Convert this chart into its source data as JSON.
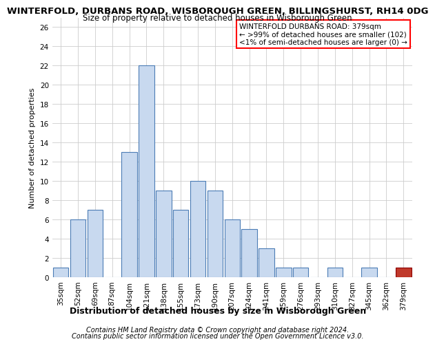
{
  "title": "WINTERFOLD, DURBANS ROAD, WISBOROUGH GREEN, BILLINGSHURST, RH14 0DG",
  "subtitle": "Size of property relative to detached houses in Wisborough Green",
  "xlabel": "Distribution of detached houses by size in Wisborough Green",
  "ylabel": "Number of detached properties",
  "categories": [
    "35sqm",
    "52sqm",
    "69sqm",
    "87sqm",
    "104sqm",
    "121sqm",
    "138sqm",
    "155sqm",
    "173sqm",
    "190sqm",
    "207sqm",
    "224sqm",
    "241sqm",
    "259sqm",
    "276sqm",
    "293sqm",
    "310sqm",
    "327sqm",
    "345sqm",
    "362sqm",
    "379sqm"
  ],
  "values": [
    1,
    6,
    7,
    0,
    13,
    22,
    9,
    7,
    10,
    9,
    6,
    5,
    3,
    1,
    1,
    0,
    1,
    0,
    1,
    0,
    1
  ],
  "bar_facecolor": "#c8d9ef",
  "bar_edgecolor": "#4a7cb5",
  "bar_color_highlight_face": "#c0392b",
  "bar_color_highlight_edge": "#8b0000",
  "highlight_index": 20,
  "ylim": [
    0,
    27
  ],
  "yticks": [
    0,
    2,
    4,
    6,
    8,
    10,
    12,
    14,
    16,
    18,
    20,
    22,
    24,
    26
  ],
  "annotation_box_text": [
    "WINTERFOLD DURBANS ROAD: 379sqm",
    "← >99% of detached houses are smaller (102)",
    "<1% of semi-detached houses are larger (0) →"
  ],
  "footer1": "Contains HM Land Registry data © Crown copyright and database right 2024.",
  "footer2": "Contains public sector information licensed under the Open Government Licence v3.0.",
  "grid_color": "#cccccc",
  "background_color": "#ffffff",
  "title_fontsize": 9.5,
  "subtitle_fontsize": 8.5,
  "ylabel_fontsize": 8,
  "xlabel_fontsize": 9,
  "tick_fontsize": 7.5,
  "annotation_fontsize": 7.5,
  "footer_fontsize": 7
}
